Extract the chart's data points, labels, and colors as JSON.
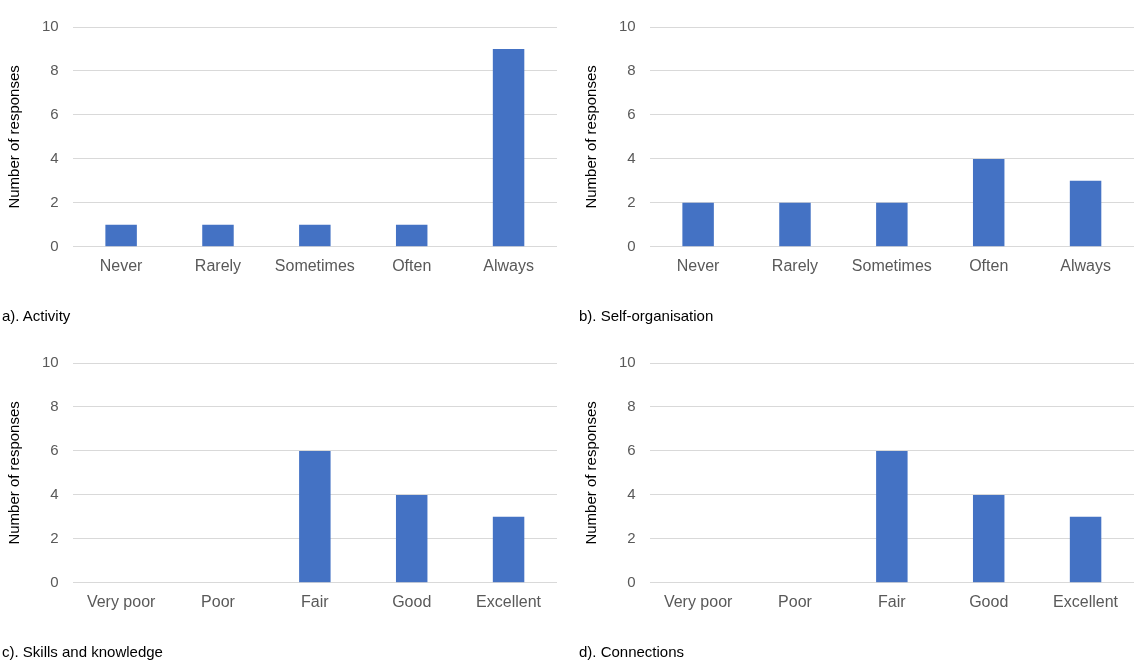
{
  "chart_data": [
    {
      "type": "bar",
      "title": "a). Activity",
      "ylabel": "Number of responses",
      "categories": [
        "Never",
        "Rarely",
        "Sometimes",
        "Often",
        "Always"
      ],
      "values": [
        1,
        1,
        1,
        1,
        9
      ],
      "color": "#4472c4",
      "ylim": [
        0,
        10
      ],
      "yticks": [
        0,
        2,
        4,
        6,
        8,
        10
      ],
      "grid": "y",
      "legend": false
    },
    {
      "type": "bar",
      "title": "b). Self-organisation",
      "ylabel": "Number of responses",
      "categories": [
        "Never",
        "Rarely",
        "Sometimes",
        "Often",
        "Always"
      ],
      "values": [
        2,
        2,
        2,
        4,
        3
      ],
      "color": "#4472c4",
      "ylim": [
        0,
        10
      ],
      "yticks": [
        0,
        2,
        4,
        6,
        8,
        10
      ],
      "grid": "y",
      "legend": false
    },
    {
      "type": "bar",
      "title": "c). Skills and knowledge",
      "ylabel": "Number of responses",
      "categories": [
        "Very poor",
        "Poor",
        "Fair",
        "Good",
        "Excellent"
      ],
      "values": [
        0,
        0,
        6,
        4,
        3
      ],
      "color": "#4472c4",
      "ylim": [
        0,
        10
      ],
      "yticks": [
        0,
        2,
        4,
        6,
        8,
        10
      ],
      "grid": "y",
      "legend": false
    },
    {
      "type": "bar",
      "title": "d). Connections",
      "ylabel": "Number of responses",
      "categories": [
        "Very poor",
        "Poor",
        "Fair",
        "Good",
        "Excellent"
      ],
      "values": [
        0,
        0,
        6,
        4,
        3
      ],
      "color": "#4472c4",
      "ylim": [
        0,
        10
      ],
      "yticks": [
        0,
        2,
        4,
        6,
        8,
        10
      ],
      "grid": "y",
      "legend": false
    }
  ]
}
